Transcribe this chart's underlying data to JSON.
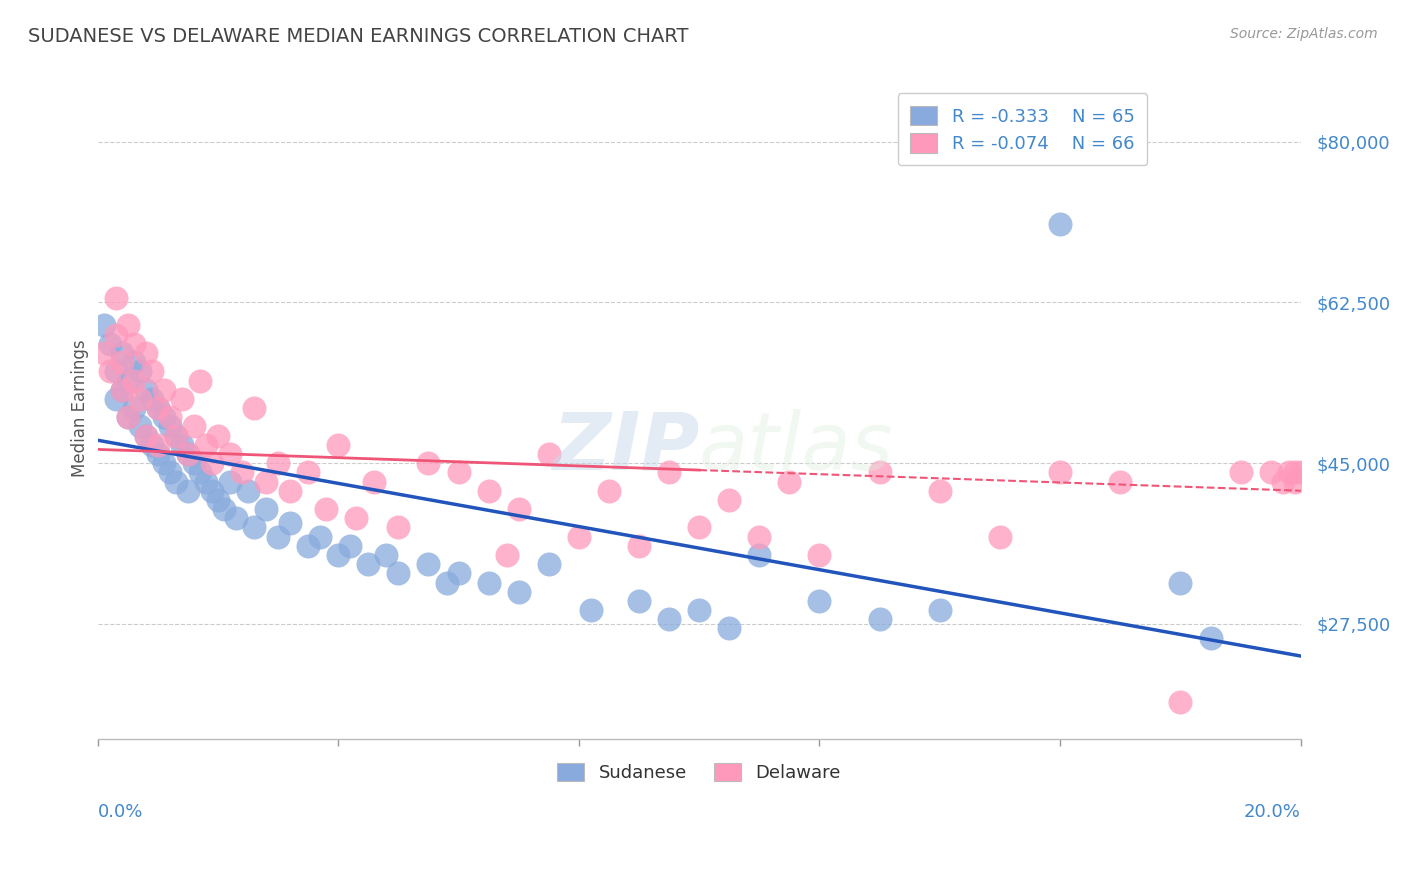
{
  "title": "SUDANESE VS DELAWARE MEDIAN EARNINGS CORRELATION CHART",
  "source": "Source: ZipAtlas.com",
  "ylabel": "Median Earnings",
  "yticks": [
    27500,
    45000,
    62500,
    80000
  ],
  "ytick_labels": [
    "$27,500",
    "$45,000",
    "$62,500",
    "$80,000"
  ],
  "xmin": 0.0,
  "xmax": 0.2,
  "ymin": 15000,
  "ymax": 87000,
  "blue_R": "-0.333",
  "blue_N": "65",
  "pink_R": "-0.074",
  "pink_N": "66",
  "blue_color": "#88AADD",
  "pink_color": "#FF99BB",
  "blue_line_color": "#2255BB",
  "pink_line_color": "#EE5577",
  "legend_label_blue": "Sudanese",
  "legend_label_pink": "Delaware",
  "watermark": "ZIPatlas",
  "background_color": "#ffffff",
  "grid_color": "#cccccc",
  "title_color": "#444444",
  "axis_label_color": "#4488CC",
  "blue_line_x0": 0.0,
  "blue_line_y0": 47500,
  "blue_line_x1": 0.2,
  "blue_line_y1": 24000,
  "pink_line_x0": 0.0,
  "pink_line_y0": 46500,
  "pink_line_x1": 0.2,
  "pink_line_y1": 42000,
  "pink_solid_xend": 0.1,
  "blue_scatter_x": [
    0.001,
    0.002,
    0.003,
    0.003,
    0.004,
    0.004,
    0.005,
    0.005,
    0.006,
    0.006,
    0.007,
    0.007,
    0.008,
    0.008,
    0.009,
    0.009,
    0.01,
    0.01,
    0.011,
    0.011,
    0.012,
    0.012,
    0.013,
    0.013,
    0.014,
    0.015,
    0.015,
    0.016,
    0.017,
    0.018,
    0.019,
    0.02,
    0.021,
    0.022,
    0.023,
    0.025,
    0.026,
    0.028,
    0.03,
    0.032,
    0.035,
    0.037,
    0.04,
    0.042,
    0.045,
    0.048,
    0.05,
    0.055,
    0.058,
    0.06,
    0.065,
    0.07,
    0.075,
    0.082,
    0.09,
    0.095,
    0.1,
    0.105,
    0.11,
    0.12,
    0.13,
    0.14,
    0.16,
    0.18,
    0.185
  ],
  "blue_scatter_y": [
    60000,
    58000,
    55000,
    52000,
    53000,
    57000,
    54000,
    50000,
    56000,
    51000,
    55000,
    49000,
    53000,
    48000,
    52000,
    47000,
    51000,
    46000,
    50000,
    45000,
    49000,
    44000,
    48000,
    43000,
    47000,
    46000,
    42000,
    45000,
    44000,
    43000,
    42000,
    41000,
    40000,
    43000,
    39000,
    42000,
    38000,
    40000,
    37000,
    38500,
    36000,
    37000,
    35000,
    36000,
    34000,
    35000,
    33000,
    34000,
    32000,
    33000,
    32000,
    31000,
    34000,
    29000,
    30000,
    28000,
    29000,
    27000,
    35000,
    30000,
    28000,
    29000,
    71000,
    32000,
    26000
  ],
  "pink_scatter_x": [
    0.001,
    0.002,
    0.003,
    0.003,
    0.004,
    0.004,
    0.005,
    0.005,
    0.006,
    0.006,
    0.007,
    0.008,
    0.008,
    0.009,
    0.01,
    0.01,
    0.011,
    0.012,
    0.013,
    0.014,
    0.015,
    0.016,
    0.017,
    0.018,
    0.019,
    0.02,
    0.022,
    0.024,
    0.026,
    0.028,
    0.03,
    0.032,
    0.035,
    0.038,
    0.04,
    0.043,
    0.046,
    0.05,
    0.055,
    0.06,
    0.065,
    0.068,
    0.07,
    0.075,
    0.08,
    0.085,
    0.09,
    0.095,
    0.1,
    0.105,
    0.11,
    0.115,
    0.12,
    0.13,
    0.14,
    0.15,
    0.16,
    0.17,
    0.18,
    0.19,
    0.195,
    0.197,
    0.198,
    0.199,
    0.199,
    0.2
  ],
  "pink_scatter_y": [
    57000,
    55000,
    63000,
    59000,
    56000,
    53000,
    60000,
    50000,
    58000,
    54000,
    52000,
    57000,
    48000,
    55000,
    51000,
    47000,
    53000,
    50000,
    48000,
    52000,
    46000,
    49000,
    54000,
    47000,
    45000,
    48000,
    46000,
    44000,
    51000,
    43000,
    45000,
    42000,
    44000,
    40000,
    47000,
    39000,
    43000,
    38000,
    45000,
    44000,
    42000,
    35000,
    40000,
    46000,
    37000,
    42000,
    36000,
    44000,
    38000,
    41000,
    37000,
    43000,
    35000,
    44000,
    42000,
    37000,
    44000,
    43000,
    19000,
    44000,
    44000,
    43000,
    44000,
    43000,
    44000,
    44000
  ]
}
